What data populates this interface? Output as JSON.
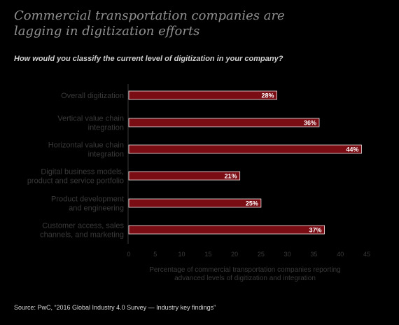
{
  "title": "Commercial transportation companies are lagging in digitization efforts",
  "subtitle": "How would you classify the current level of digitization in your company?",
  "source": "Source: PwC, “2016 Global Industry 4.0 Survey — Industry key findings”",
  "colors": {
    "background": "#000000",
    "bar": "#7a0c14",
    "bar_edge": "#f2e6e6",
    "title": "#8f8f8f",
    "subtitle": "#cfcfcf",
    "muted_text": "#3a3a3a"
  },
  "chart_data": {
    "type": "bar",
    "orientation": "horizontal",
    "categories": [
      [
        "Overall digitization"
      ],
      [
        "Vertical value chain",
        "integration"
      ],
      [
        "Horizontal value chain",
        "integration"
      ],
      [
        "Digital business models,",
        "product and service portfolio"
      ],
      [
        "Product development",
        "and engineering"
      ],
      [
        "Customer access, sales",
        "channels, and marketing"
      ]
    ],
    "values": [
      28,
      36,
      44,
      21,
      25,
      37
    ],
    "data_labels": [
      "28%",
      "36%",
      "44%",
      "21%",
      "25%",
      "37%"
    ],
    "xlim": [
      0,
      45
    ],
    "xticks": [
      0,
      5,
      10,
      15,
      20,
      25,
      30,
      35,
      40,
      45
    ],
    "xlabel": [
      "Percentage of commercial transportation companies reporting",
      "advanced levels of digitization and integration"
    ],
    "ylabel": "",
    "grid": false,
    "legend": "none"
  }
}
